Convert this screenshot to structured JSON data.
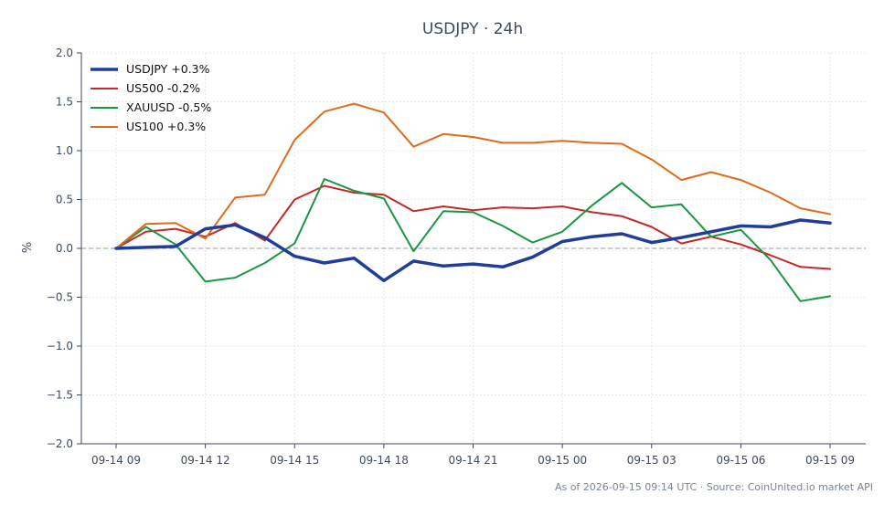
{
  "chart_data": {
    "type": "line",
    "title": "USDJPY · 24h",
    "xlabel": "",
    "ylabel": "%",
    "ylim": [
      -2.0,
      2.0
    ],
    "y_ticks": [
      -2.0,
      -1.5,
      -1.0,
      -0.5,
      0.0,
      0.5,
      1.0,
      1.5,
      2.0
    ],
    "y_tick_labels": [
      "−2.0",
      "−1.5",
      "−1.0",
      "−0.5",
      "0.0",
      "0.5",
      "1.0",
      "1.5",
      "2.0"
    ],
    "x_ticks": [
      "09-14 09",
      "09-14 12",
      "09-14 15",
      "09-14 18",
      "09-14 21",
      "09-15 00",
      "09-15 03",
      "09-15 06",
      "09-15 09"
    ],
    "x": [
      "09-14 09",
      "09-14 10",
      "09-14 11",
      "09-14 12",
      "09-14 13",
      "09-14 14",
      "09-14 15",
      "09-14 16",
      "09-14 17",
      "09-14 18",
      "09-14 19",
      "09-14 20",
      "09-14 21",
      "09-14 22",
      "09-14 23",
      "09-15 00",
      "09-15 01",
      "09-15 02",
      "09-15 03",
      "09-15 04",
      "09-15 05",
      "09-15 06",
      "09-15 07",
      "09-15 08",
      "09-15 09"
    ],
    "grid": true,
    "legend_position": "top-left",
    "zero_line": true,
    "series": [
      {
        "name": "USDJPY +0.3%",
        "color": "#1f3d99",
        "width": "thick",
        "values": [
          0.0,
          0.01,
          0.02,
          0.2,
          0.24,
          0.11,
          -0.08,
          -0.15,
          -0.1,
          -0.33,
          -0.13,
          -0.18,
          -0.16,
          -0.19,
          -0.09,
          0.07,
          0.12,
          0.15,
          0.06,
          0.11,
          0.17,
          0.23,
          0.22,
          0.29,
          0.26
        ]
      },
      {
        "name": "US500 -0.2%",
        "color": "#c62828",
        "width": "normal",
        "values": [
          0.0,
          0.17,
          0.2,
          0.12,
          0.26,
          0.08,
          0.5,
          0.64,
          0.57,
          0.55,
          0.38,
          0.43,
          0.39,
          0.42,
          0.41,
          0.43,
          0.37,
          0.33,
          0.22,
          0.05,
          0.12,
          0.04,
          -0.07,
          -0.19,
          -0.21
        ]
      },
      {
        "name": "XAUUSD -0.5%",
        "color": "#1a9641",
        "width": "normal",
        "values": [
          0.0,
          0.22,
          0.04,
          -0.34,
          -0.3,
          -0.15,
          0.05,
          0.71,
          0.59,
          0.51,
          -0.03,
          0.38,
          0.37,
          0.23,
          0.06,
          0.17,
          0.44,
          0.67,
          0.42,
          0.45,
          0.12,
          0.19,
          -0.12,
          -0.54,
          -0.49
        ]
      },
      {
        "name": "US100 +0.3%",
        "color": "#e06a1b",
        "width": "normal",
        "values": [
          0.0,
          0.25,
          0.26,
          0.1,
          0.52,
          0.55,
          1.11,
          1.4,
          1.48,
          1.39,
          1.04,
          1.17,
          1.14,
          1.08,
          1.08,
          1.1,
          1.08,
          1.07,
          0.91,
          0.7,
          0.78,
          0.7,
          0.57,
          0.41,
          0.35
        ]
      }
    ]
  },
  "footer": "As of 2026-09-15 09:14 UTC · Source: CoinUnited.io market API"
}
